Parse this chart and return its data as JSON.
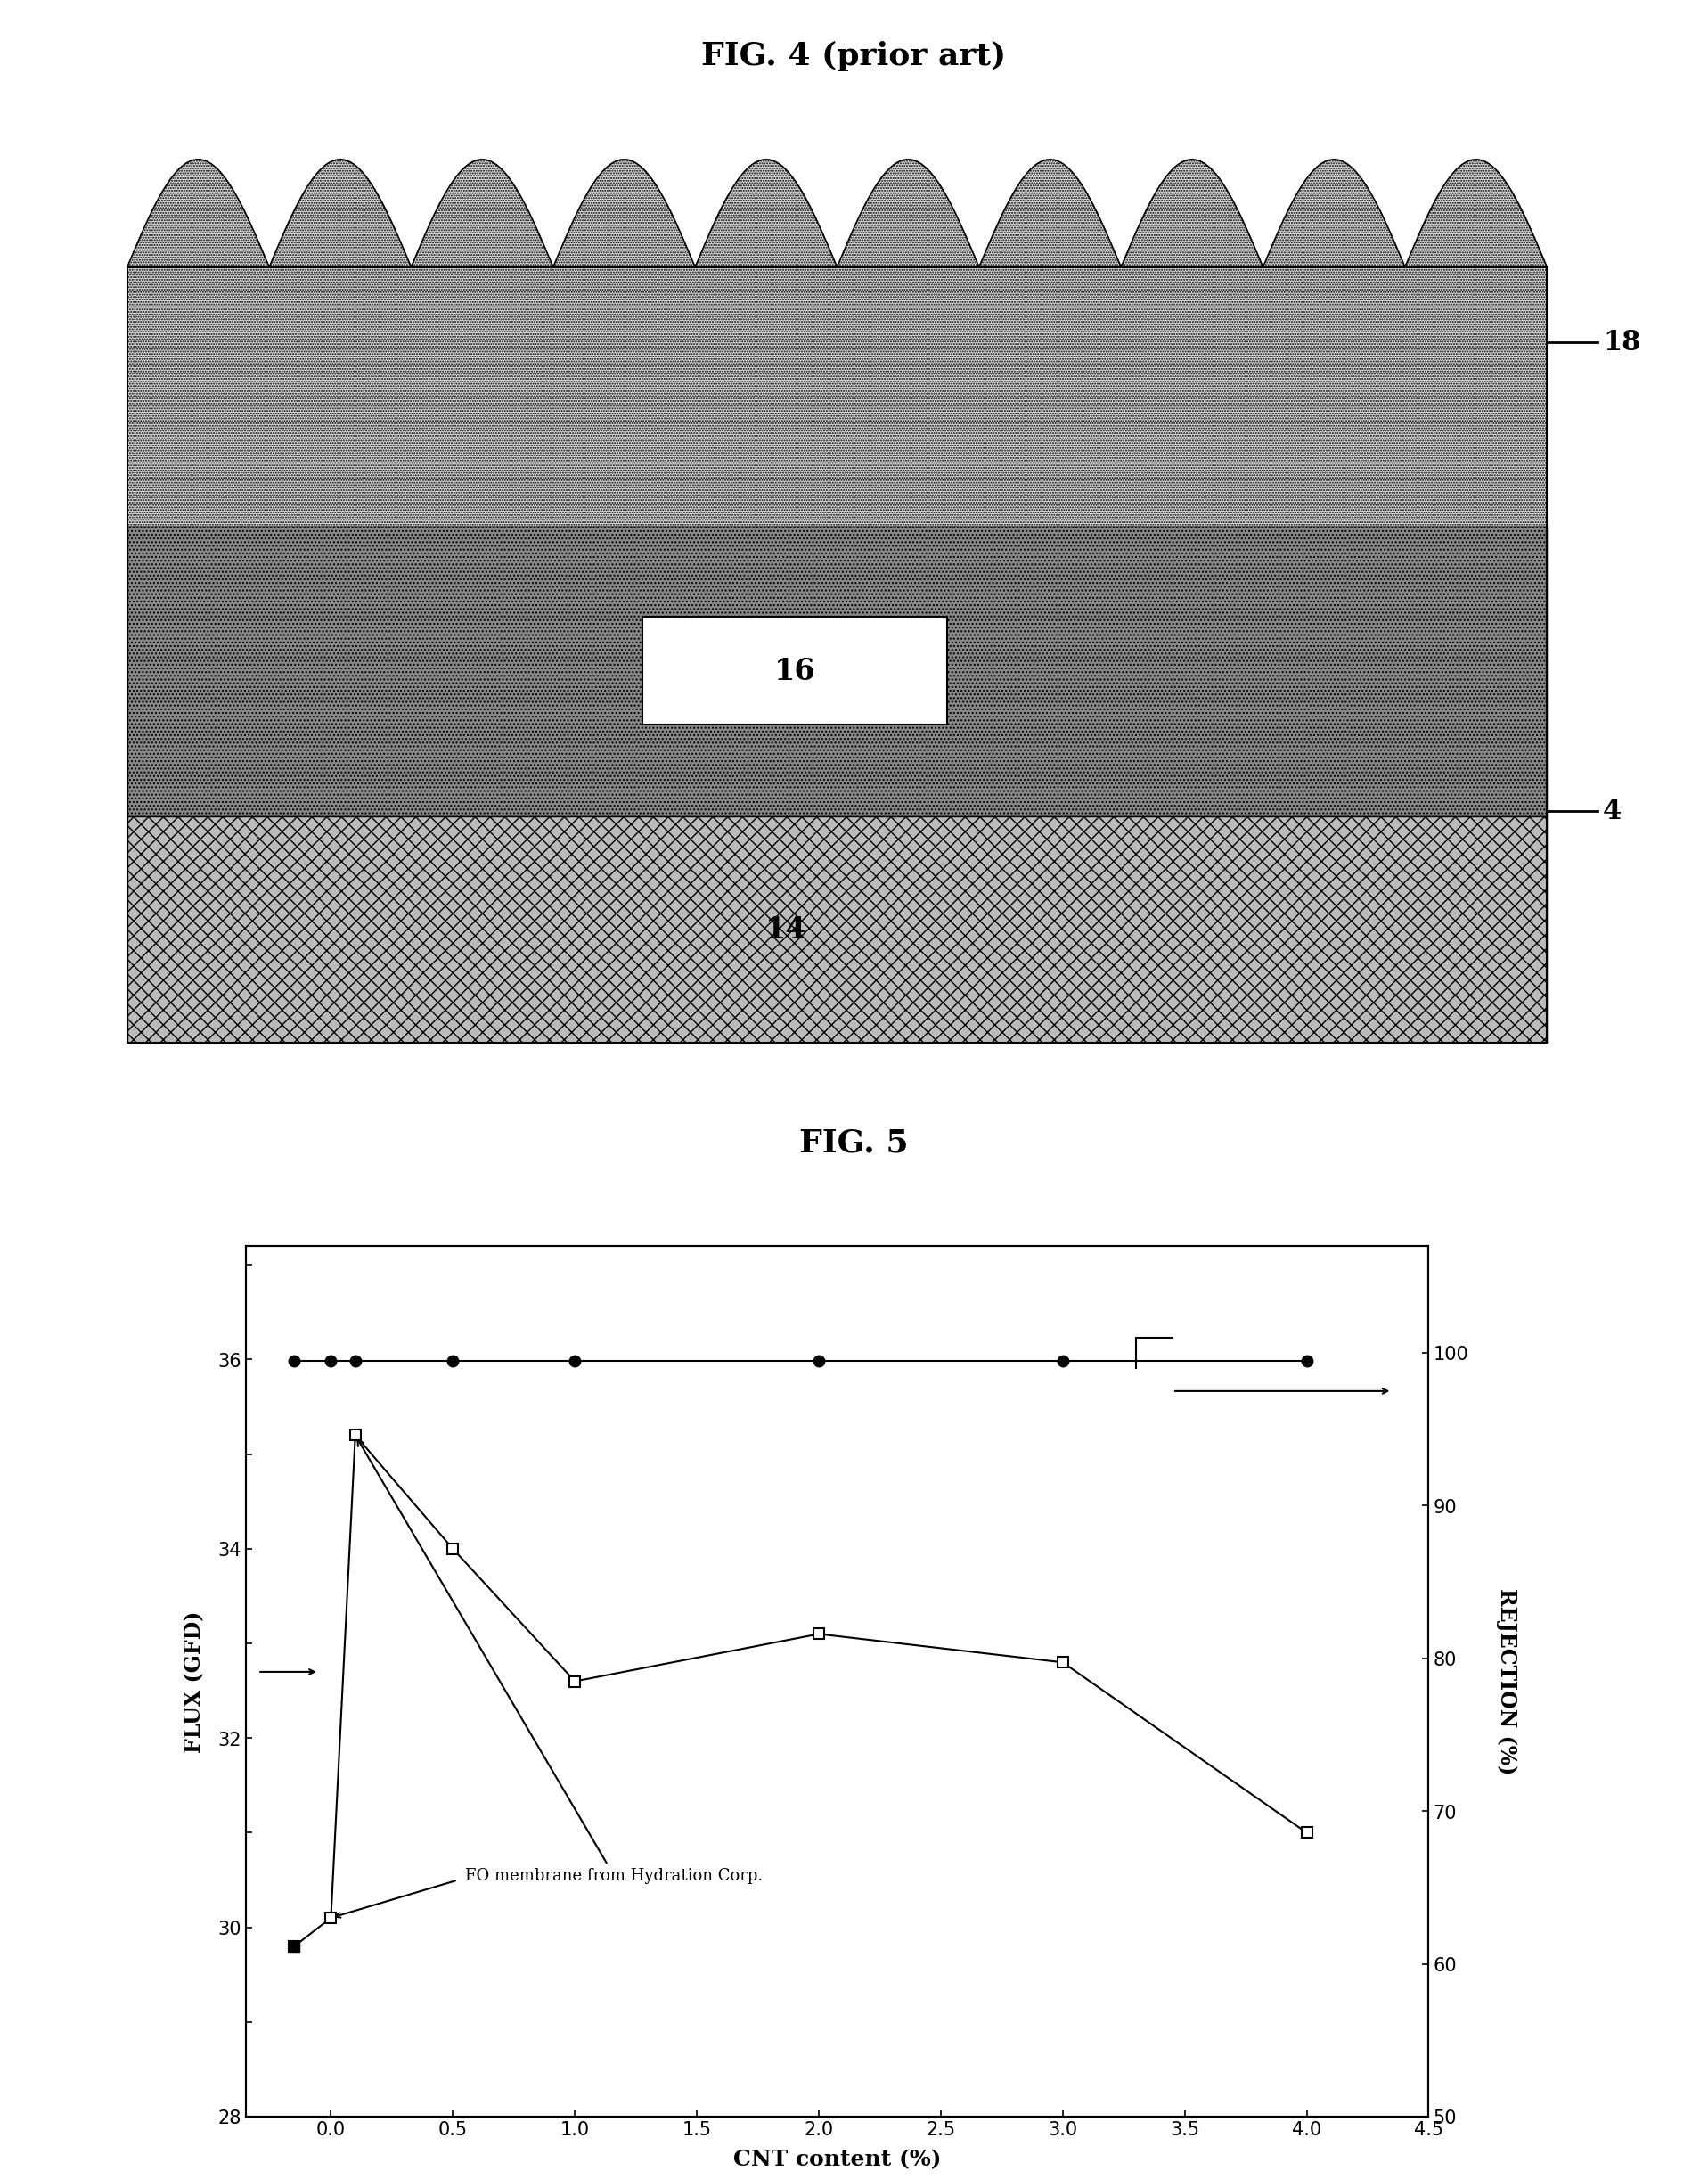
{
  "fig4_title": "FIG. 4 (prior art)",
  "fig5_title": "FIG. 5",
  "label_18": "18",
  "label_16": "16",
  "label_14": "14",
  "label_4": "4",
  "flux_ylabel": "FLUX (GFD)",
  "rejection_ylabel": "REJECTION (%)",
  "xlabel": "CNT content (%)",
  "annotation_fo": "FO membrane from Hydration Corp.",
  "xlim": [
    -0.35,
    4.5
  ],
  "ylim_left": [
    28,
    37.2
  ],
  "ylim_right": [
    50,
    107
  ],
  "flux_x": [
    -0.15,
    0.0,
    0.1,
    0.5,
    1.0,
    2.0,
    3.0,
    4.0
  ],
  "flux_y": [
    29.8,
    30.1,
    35.2,
    34.0,
    32.6,
    33.1,
    32.8,
    31.0
  ],
  "rejection_x": [
    -0.15,
    0.0,
    0.1,
    0.5,
    1.0,
    2.0,
    3.0,
    4.0
  ],
  "rejection_y": [
    36.05,
    36.05,
    36.05,
    36.05,
    36.05,
    36.05,
    36.05,
    36.05
  ],
  "yticks_left_vals": [
    28,
    29,
    30,
    31,
    32,
    33,
    34,
    35,
    36,
    37
  ],
  "yticks_left_labels": [
    "28",
    "",
    "30",
    "",
    "32",
    "",
    "34",
    "",
    "36",
    ""
  ],
  "yticks_right_vals": [
    50,
    60,
    70,
    80,
    90,
    100
  ],
  "yticks_right_labels": [
    "50",
    "60",
    "70",
    "80",
    "90",
    "100"
  ],
  "xtick_vals": [
    0.0,
    0.5,
    1.0,
    1.5,
    2.0,
    2.5,
    3.0,
    3.5,
    4.0,
    4.5
  ],
  "xtick_labels": [
    "0.0",
    "0.5",
    "1.0",
    "1.5",
    "2.0",
    "2.5",
    "3.0",
    "3.5",
    "4.0",
    "4.5"
  ],
  "background_color": "#ffffff"
}
